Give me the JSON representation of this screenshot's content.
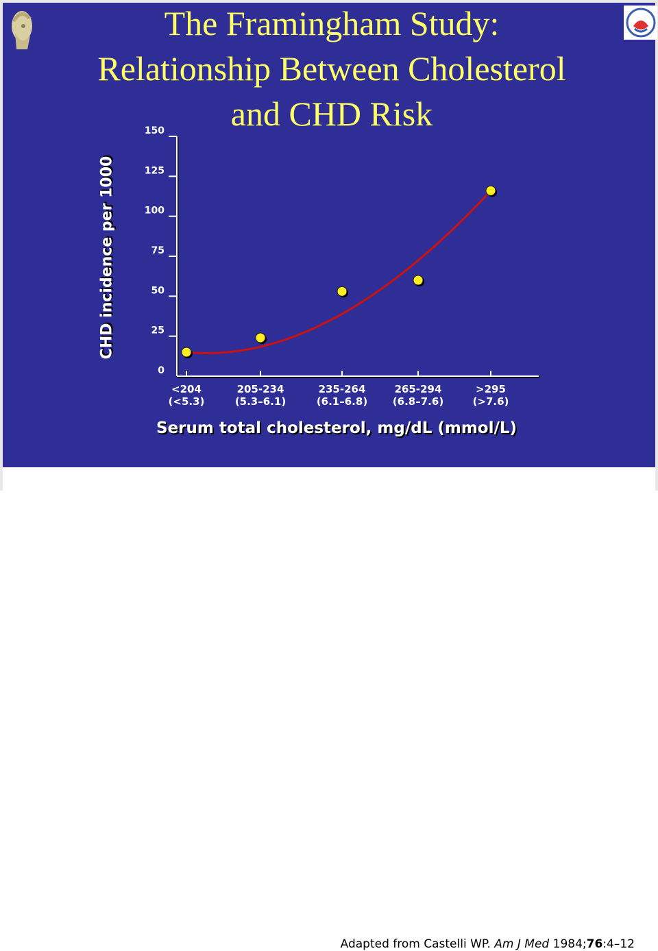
{
  "title": {
    "line1": "The Framingham Study:",
    "line2": "Relationship Between Cholesterol",
    "line3": "and CHD Risk"
  },
  "logos": {
    "crest_icon": "helmeted-head-crest-icon",
    "corner_icon": "medical-society-logo-icon"
  },
  "citation": {
    "prefix": "Adapted from Castelli WP. ",
    "journal": "Am J Med",
    "year": " 1984;",
    "volume": "76",
    "pages": ":4–12"
  },
  "colors": {
    "background": "#2e2e96",
    "title": "#ffff66",
    "curve": "#cc1111",
    "points": "#ffee22"
  },
  "chart_data": {
    "type": "scatter",
    "xlabel": "Serum total cholesterol, mg/dL (mmol/L)",
    "ylabel": "CHD incidence per 1000",
    "ylim": [
      0,
      150
    ],
    "yticks": [
      "0",
      "25",
      "50",
      "75",
      "100",
      "125",
      "150"
    ],
    "categories": [
      {
        "line1": "<204",
        "line2": "(<5.3)"
      },
      {
        "line1": "205-234",
        "line2": "(5.3–6.1)"
      },
      {
        "line1": "235-264",
        "line2": "(6.1–6.8)"
      },
      {
        "line1": "265-294",
        "line2": "(6.8–7.6)"
      },
      {
        ">line1": "",
        "line1": ">295",
        "line2": "(>7.6)"
      }
    ],
    "values": [
      15,
      24,
      53,
      60,
      116
    ],
    "trend": "fitted curve",
    "grid": false
  }
}
